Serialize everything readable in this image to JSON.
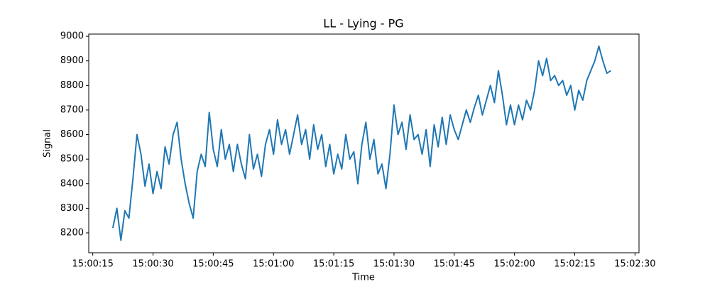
{
  "chart_data": {
    "type": "line",
    "title": "LL - Lying - PG",
    "x_label": "Time",
    "y_label": "Signal",
    "color": "#1f77b4",
    "x": [
      "15:00:20",
      "15:00:21",
      "15:00:22",
      "15:00:23",
      "15:00:24",
      "15:00:25",
      "15:00:26",
      "15:00:27",
      "15:00:28",
      "15:00:29",
      "15:00:30",
      "15:00:31",
      "15:00:32",
      "15:00:33",
      "15:00:34",
      "15:00:35",
      "15:00:36",
      "15:00:37",
      "15:00:38",
      "15:00:39",
      "15:00:40",
      "15:00:41",
      "15:00:42",
      "15:00:43",
      "15:00:44",
      "15:00:45",
      "15:00:46",
      "15:00:47",
      "15:00:48",
      "15:00:49",
      "15:00:50",
      "15:00:51",
      "15:00:52",
      "15:00:53",
      "15:00:54",
      "15:00:55",
      "15:00:56",
      "15:00:57",
      "15:00:58",
      "15:00:59",
      "15:01:00",
      "15:01:01",
      "15:01:02",
      "15:01:03",
      "15:01:04",
      "15:01:05",
      "15:01:06",
      "15:01:07",
      "15:01:08",
      "15:01:09",
      "15:01:10",
      "15:01:11",
      "15:01:12",
      "15:01:13",
      "15:01:14",
      "15:01:15",
      "15:01:16",
      "15:01:17",
      "15:01:18",
      "15:01:19",
      "15:01:20",
      "15:01:21",
      "15:01:22",
      "15:01:23",
      "15:01:24",
      "15:01:25",
      "15:01:26",
      "15:01:27",
      "15:01:28",
      "15:01:29",
      "15:01:30",
      "15:01:31",
      "15:01:32",
      "15:01:33",
      "15:01:34",
      "15:01:35",
      "15:01:36",
      "15:01:37",
      "15:01:38",
      "15:01:39",
      "15:01:40",
      "15:01:41",
      "15:01:42",
      "15:01:43",
      "15:01:44",
      "15:01:45",
      "15:01:46",
      "15:01:47",
      "15:01:48",
      "15:01:49",
      "15:01:50",
      "15:01:51",
      "15:01:52",
      "15:01:53",
      "15:01:54",
      "15:01:55",
      "15:01:56",
      "15:01:57",
      "15:01:58",
      "15:01:59",
      "15:02:00",
      "15:02:01",
      "15:02:02",
      "15:02:03",
      "15:02:04",
      "15:02:05",
      "15:02:06",
      "15:02:07",
      "15:02:08",
      "15:02:09",
      "15:02:10",
      "15:02:11",
      "15:02:12",
      "15:02:13",
      "15:02:14",
      "15:02:15",
      "15:02:16",
      "15:02:17",
      "15:02:18",
      "15:02:19",
      "15:02:20",
      "15:02:21",
      "15:02:22",
      "15:02:23",
      "15:02:24"
    ],
    "values": [
      8220,
      8300,
      8170,
      8290,
      8260,
      8420,
      8600,
      8520,
      8390,
      8480,
      8360,
      8450,
      8380,
      8550,
      8480,
      8600,
      8650,
      8500,
      8400,
      8320,
      8260,
      8450,
      8520,
      8470,
      8690,
      8540,
      8470,
      8620,
      8500,
      8560,
      8450,
      8560,
      8480,
      8420,
      8600,
      8460,
      8520,
      8430,
      8560,
      8620,
      8520,
      8660,
      8560,
      8620,
      8520,
      8600,
      8680,
      8560,
      8620,
      8500,
      8640,
      8540,
      8600,
      8470,
      8560,
      8440,
      8520,
      8460,
      8600,
      8500,
      8530,
      8400,
      8560,
      8650,
      8500,
      8580,
      8440,
      8480,
      8380,
      8520,
      8720,
      8600,
      8650,
      8540,
      8680,
      8580,
      8600,
      8520,
      8620,
      8470,
      8640,
      8550,
      8670,
      8560,
      8680,
      8620,
      8580,
      8640,
      8700,
      8650,
      8710,
      8760,
      8680,
      8740,
      8800,
      8730,
      8860,
      8760,
      8640,
      8720,
      8640,
      8720,
      8660,
      8740,
      8700,
      8780,
      8900,
      8840,
      8910,
      8820,
      8840,
      8800,
      8820,
      8760,
      8800,
      8700,
      8780,
      8740,
      8820,
      8860,
      8900,
      8960,
      8900,
      8850,
      8860
    ],
    "xlim": [
      "15:00:14",
      "15:02:31"
    ],
    "xticks": [
      "15:00:15",
      "15:00:30",
      "15:00:45",
      "15:01:00",
      "15:01:15",
      "15:01:30",
      "15:01:45",
      "15:02:00",
      "15:02:15",
      "15:02:30"
    ],
    "ylim": [
      8119,
      9009
    ],
    "yticks": [
      8200,
      8300,
      8400,
      8500,
      8600,
      8700,
      8800,
      8900,
      9000
    ],
    "grid": false
  }
}
